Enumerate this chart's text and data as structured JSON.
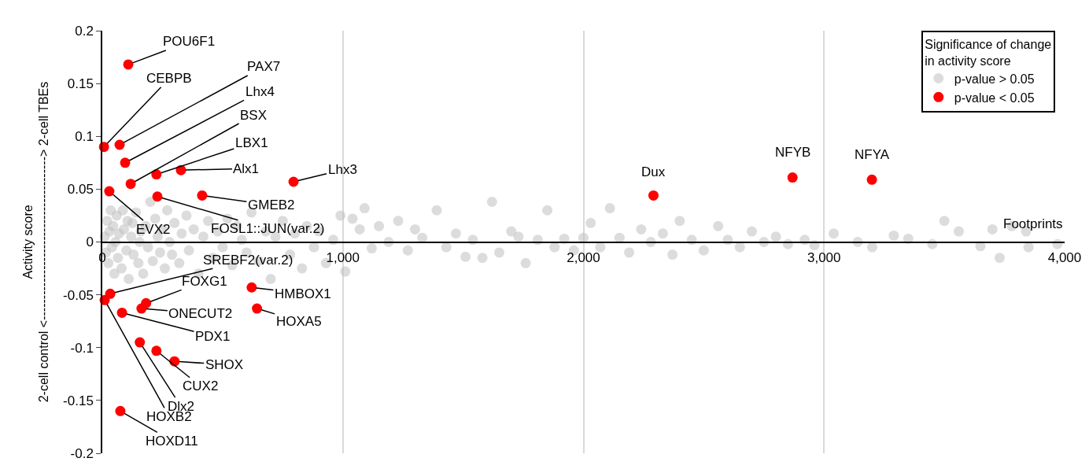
{
  "chart_data": {
    "type": "scatter",
    "xlabel": "Footprints",
    "ylabel": "Activity score\n2-cell control <---------------------------------------> 2-cell TBEs",
    "legend_title": "Significance of change in activity score",
    "xlim": [
      0,
      4000
    ],
    "ylim": [
      -0.2,
      0.2
    ],
    "xticks": [
      0,
      {
        "value": 1000,
        "label": "1,000"
      },
      {
        "value": 2000,
        "label": "2,000"
      },
      {
        "value": 3000,
        "label": "3,000"
      },
      {
        "value": 4000,
        "label": "4,000"
      }
    ],
    "yticks": [
      -0.2,
      -0.15,
      -0.1,
      -0.05,
      0,
      0.05,
      0.1,
      0.15,
      0.2
    ],
    "grid": "x",
    "legend": "top right",
    "marker": "circle",
    "series": [
      {
        "name": "p-value > 0.05",
        "color": "#bfbfbf",
        "x": [
          10,
          15,
          20,
          25,
          30,
          35,
          40,
          45,
          50,
          55,
          60,
          65,
          70,
          80,
          85,
          90,
          100,
          105,
          110,
          120,
          125,
          130,
          140,
          150,
          155,
          160,
          170,
          180,
          190,
          200,
          210,
          220,
          230,
          240,
          250,
          260,
          270,
          280,
          290,
          300,
          320,
          330,
          350,
          360,
          380,
          400,
          420,
          440,
          460,
          480,
          500,
          520,
          540,
          560,
          580,
          600,
          620,
          650,
          680,
          700,
          720,
          750,
          780,
          800,
          830,
          850,
          880,
          900,
          930,
          960,
          990,
          1010,
          1040,
          1070,
          1090,
          1120,
          1150,
          1190,
          1230,
          1270,
          1300,
          1330,
          1390,
          1430,
          1470,
          1510,
          1540,
          1580,
          1620,
          1650,
          1700,
          1730,
          1760,
          1810,
          1850,
          1880,
          1920,
          1960,
          2000,
          2030,
          2070,
          2110,
          2150,
          2190,
          2240,
          2280,
          2330,
          2370,
          2400,
          2450,
          2500,
          2560,
          2600,
          2650,
          2700,
          2750,
          2800,
          2850,
          2920,
          2960,
          3040,
          3140,
          3200,
          3290,
          3350,
          3450,
          3500,
          3560,
          3650,
          3700,
          3730,
          3780,
          3840,
          3850,
          3970
        ],
        "values": [
          0.005,
          -0.01,
          0.02,
          -0.02,
          0.01,
          0.03,
          -0.005,
          0.015,
          -0.03,
          0.0,
          0.025,
          -0.015,
          0.008,
          -0.025,
          0.03,
          0.012,
          -0.008,
          0.02,
          -0.035,
          0.005,
          0.018,
          -0.012,
          0.028,
          -0.02,
          0.0,
          0.01,
          -0.03,
          0.015,
          -0.005,
          0.038,
          -0.018,
          0.022,
          0.005,
          -0.01,
          0.012,
          -0.025,
          0.03,
          0.0,
          -0.012,
          0.018,
          -0.02,
          0.008,
          0.025,
          -0.008,
          0.012,
          -0.03,
          0.005,
          0.02,
          -0.015,
          0.01,
          -0.005,
          0.022,
          -0.022,
          0.015,
          0.002,
          -0.01,
          0.028,
          -0.018,
          0.01,
          -0.035,
          0.005,
          0.02,
          -0.012,
          0.008,
          -0.025,
          0.015,
          -0.005,
          0.01,
          -0.02,
          0.002,
          0.025,
          -0.028,
          0.022,
          0.012,
          0.032,
          -0.006,
          0.015,
          0.0,
          0.02,
          -0.008,
          0.012,
          0.004,
          0.03,
          -0.005,
          0.008,
          -0.014,
          0.002,
          -0.015,
          0.038,
          -0.01,
          0.01,
          0.005,
          -0.02,
          0.002,
          0.03,
          -0.005,
          0.003,
          -0.008,
          0.004,
          0.018,
          -0.005,
          0.032,
          0.004,
          -0.01,
          0.012,
          0.0,
          0.008,
          -0.012,
          0.02,
          0.002,
          -0.008,
          0.015,
          0.002,
          -0.005,
          0.01,
          0.0,
          0.005,
          -0.002,
          0.002,
          -0.003,
          0.008,
          0.0,
          -0.005,
          0.006,
          0.003,
          -0.002,
          0.02,
          0.01,
          -0.004,
          0.012,
          -0.015,
          0.015,
          0.01,
          -0.005,
          -0.002
        ]
      },
      {
        "name": "p-value < 0.05",
        "color": "#ff0000",
        "x": [
          108,
          7,
          72,
          95,
          118,
          225,
          327,
          795,
          29,
          229,
          415,
          33,
          10,
          182,
          163,
          82,
          621,
          643,
          156,
          225,
          300,
          75,
          2291,
          2869,
          3199
        ],
        "values": [
          0.168,
          0.09,
          0.092,
          0.075,
          0.055,
          0.064,
          0.068,
          0.057,
          0.048,
          0.043,
          0.044,
          -0.049,
          -0.055,
          -0.058,
          -0.063,
          -0.067,
          -0.043,
          -0.063,
          -0.095,
          -0.103,
          -0.113,
          -0.16,
          0.044,
          0.061,
          0.059
        ]
      }
    ],
    "annotations": [
      {
        "text": "POU6F1",
        "x": 108,
        "y": 0.168
      },
      {
        "text": "CEBPB",
        "x": 7,
        "y": 0.09
      },
      {
        "text": "PAX7",
        "x": 72,
        "y": 0.092
      },
      {
        "text": "Lhx4",
        "x": 95,
        "y": 0.075
      },
      {
        "text": "BSX",
        "x": 118,
        "y": 0.055
      },
      {
        "text": "LBX1",
        "x": 225,
        "y": 0.064
      },
      {
        "text": "Alx1",
        "x": 327,
        "y": 0.068
      },
      {
        "text": "Lhx3",
        "x": 795,
        "y": 0.057
      },
      {
        "text": "EVX2",
        "x": 29,
        "y": 0.048
      },
      {
        "text": "FOSL1::JUN(var.2)",
        "x": 229,
        "y": 0.043
      },
      {
        "text": "GMEB2",
        "x": 415,
        "y": 0.044
      },
      {
        "text": "SREBF2(var.2)",
        "x": 33,
        "y": -0.049
      },
      {
        "text": "HOXB2",
        "x": 10,
        "y": -0.055
      },
      {
        "text": "FOXG1",
        "x": 182,
        "y": -0.058
      },
      {
        "text": "ONECUT2",
        "x": 163,
        "y": -0.063
      },
      {
        "text": "PDX1",
        "x": 82,
        "y": -0.067
      },
      {
        "text": "HMBOX1",
        "x": 621,
        "y": -0.043
      },
      {
        "text": "HOXA5",
        "x": 643,
        "y": -0.063
      },
      {
        "text": "Dlx2",
        "x": 156,
        "y": -0.095
      },
      {
        "text": "CUX2",
        "x": 225,
        "y": -0.103
      },
      {
        "text": "SHOX",
        "x": 300,
        "y": -0.113
      },
      {
        "text": "HOXD11",
        "x": 75,
        "y": -0.16
      },
      {
        "text": "Dux",
        "x": 2291,
        "y": 0.044
      },
      {
        "text": "NFYB",
        "x": 2869,
        "y": 0.061
      },
      {
        "text": "NFYA",
        "x": 3199,
        "y": 0.059
      }
    ]
  }
}
